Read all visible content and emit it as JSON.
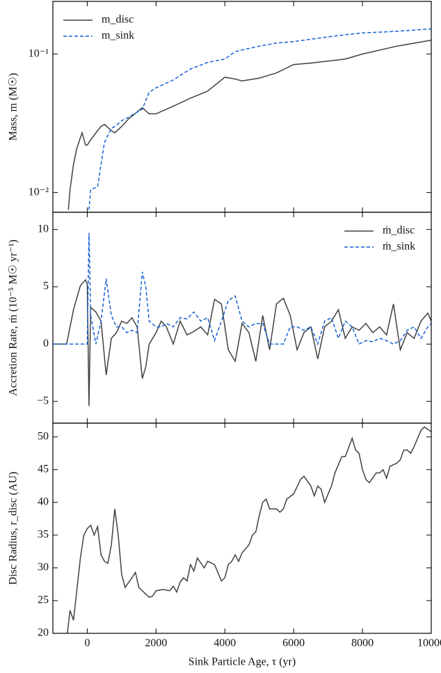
{
  "chart_data": [
    {
      "type": "line",
      "ylabel": "Mass, m (M☉)",
      "xlim": [
        -1000,
        10000
      ],
      "ylim": [
        0.0072,
        0.24
      ],
      "log_y": true,
      "yticks": [
        {
          "value": 0.01,
          "label": "10⁻²"
        },
        {
          "value": 0.1,
          "label": "10⁻¹"
        }
      ],
      "legend": "upper left",
      "x": [
        -550,
        -500,
        -400,
        -300,
        -150,
        -50,
        0,
        50,
        100,
        300,
        400,
        500,
        700,
        800,
        1000,
        1200,
        1600,
        1800,
        2000,
        2500,
        3000,
        3500,
        4000,
        4300,
        4500,
        5000,
        5500,
        6000,
        6500,
        7000,
        7500,
        8000,
        9000,
        10000
      ],
      "series": [
        {
          "name": "m_disc",
          "color": "#404040",
          "linestyle": "solid",
          "values": [
            0.0075,
            0.0105,
            0.016,
            0.021,
            0.027,
            0.022,
            0.022,
            0.023,
            0.024,
            0.028,
            0.03,
            0.031,
            0.028,
            0.027,
            0.03,
            0.034,
            0.041,
            0.037,
            0.037,
            0.042,
            0.048,
            0.054,
            0.068,
            0.066,
            0.064,
            0.067,
            0.073,
            0.084,
            0.086,
            0.089,
            0.092,
            0.1,
            0.114,
            0.126
          ]
        },
        {
          "name": "m_sink",
          "color": "#1560d4",
          "linestyle": "dashed",
          "values": [
            null,
            null,
            null,
            null,
            null,
            null,
            null,
            0.0075,
            0.0105,
            0.011,
            0.016,
            0.023,
            0.029,
            0.03,
            0.033,
            0.035,
            0.04,
            0.053,
            0.057,
            0.065,
            0.078,
            0.087,
            0.092,
            0.104,
            0.107,
            0.114,
            0.12,
            0.123,
            0.128,
            0.133,
            0.138,
            0.142,
            0.146,
            0.152
          ]
        }
      ]
    },
    {
      "type": "line",
      "ylabel": "Accretion Rate, ṁ (10⁻⁵ M☉ yr⁻¹)",
      "xlim": [
        -1000,
        10000
      ],
      "ylim": [
        -6.9,
        11.5
      ],
      "yticks": [
        {
          "value": -5,
          "label": "−5"
        },
        0,
        5,
        10
      ],
      "legend": "upper right",
      "x": [
        -1000,
        -600,
        -400,
        -200,
        -50,
        0,
        50,
        100,
        250,
        400,
        550,
        700,
        850,
        1000,
        1150,
        1300,
        1450,
        1600,
        1700,
        1800,
        2000,
        2150,
        2300,
        2500,
        2700,
        2900,
        3100,
        3300,
        3500,
        3700,
        3900,
        4100,
        4300,
        4500,
        4700,
        4900,
        5100,
        5300,
        5500,
        5700,
        5900,
        6100,
        6300,
        6500,
        6700,
        6900,
        7100,
        7300,
        7500,
        7700,
        7900,
        8100,
        8300,
        8500,
        8700,
        8900,
        9100,
        9300,
        9500,
        9700,
        9900,
        10000
      ],
      "series": [
        {
          "name": "ṁ_disc",
          "color": "#404040",
          "linestyle": "solid",
          "values": [
            0,
            0,
            3.0,
            5.1,
            5.6,
            5.2,
            -5.4,
            3.2,
            2.8,
            2.0,
            -2.7,
            0.5,
            1.0,
            2.0,
            1.8,
            2.3,
            1.5,
            -3.0,
            -2.0,
            0,
            1.0,
            2.0,
            1.5,
            0,
            2.0,
            0.8,
            1.1,
            1.5,
            0.8,
            3.9,
            3.5,
            -0.5,
            -1.5,
            1.8,
            1.0,
            -1.5,
            2.5,
            -0.5,
            3.5,
            4.0,
            2.5,
            -0.5,
            1.0,
            1.5,
            -1.3,
            1.5,
            2.0,
            3.0,
            0.5,
            1.5,
            1.2,
            1.8,
            1.0,
            1.5,
            0.8,
            3.5,
            -0.5,
            1.0,
            0.5,
            2.0,
            2.7,
            2.0
          ]
        },
        {
          "name": "ṁ_sink",
          "color": "#1560d4",
          "linestyle": "dashed",
          "values": [
            0,
            0,
            0,
            0,
            0,
            0,
            9.7,
            2.5,
            0,
            2.0,
            5.7,
            2.5,
            1.5,
            1.5,
            1.0,
            1.2,
            1.0,
            6.3,
            5.0,
            2.0,
            1.5,
            1.5,
            1.8,
            1.5,
            2.3,
            2.2,
            2.8,
            2.0,
            2.3,
            0.3,
            2.0,
            3.8,
            4.2,
            2.0,
            1.5,
            1.8,
            1.8,
            0,
            0,
            0,
            1.5,
            1.5,
            1.2,
            1.5,
            0,
            2.0,
            2.3,
            0.5,
            2.0,
            1.5,
            0,
            0.3,
            0.2,
            0.5,
            0.3,
            0,
            0.3,
            1.2,
            1.5,
            0.5,
            1.5,
            1.8
          ]
        }
      ]
    },
    {
      "type": "line",
      "ylabel": "Disc Radius, r_disc (AU)",
      "xlabel": "Sink Particle Age, τ (yr)",
      "xlim": [
        -1000,
        10000
      ],
      "ylim": [
        20,
        52.1
      ],
      "xticks": [
        0,
        2000,
        4000,
        6000,
        8000,
        10000
      ],
      "yticks": [
        20,
        25,
        30,
        35,
        40,
        45,
        50
      ],
      "x": [
        -580,
        -500,
        -400,
        -200,
        -100,
        0,
        100,
        200,
        300,
        400,
        500,
        600,
        700,
        800,
        900,
        1000,
        1100,
        1300,
        1400,
        1500,
        1700,
        1800,
        1900,
        2000,
        2200,
        2400,
        2500,
        2600,
        2700,
        2800,
        2900,
        3000,
        3100,
        3200,
        3400,
        3500,
        3700,
        3900,
        4000,
        4100,
        4200,
        4300,
        4400,
        4500,
        4700,
        4800,
        4900,
        5000,
        5100,
        5200,
        5300,
        5500,
        5600,
        5700,
        5800,
        6000,
        6200,
        6300,
        6500,
        6600,
        6700,
        6800,
        6900,
        7100,
        7200,
        7400,
        7500,
        7700,
        7800,
        7900,
        8000,
        8100,
        8200,
        8400,
        8500,
        8600,
        8700,
        8800,
        9000,
        9100,
        9200,
        9300,
        9400,
        9500,
        9700,
        9800,
        10000
      ],
      "series": [
        {
          "color": "#404040",
          "linestyle": "solid",
          "values": [
            20,
            23.5,
            22,
            31.5,
            35,
            36,
            36.5,
            35,
            36.3,
            32,
            31,
            30.7,
            33.5,
            39,
            35,
            29,
            27,
            28.5,
            29.3,
            27,
            26,
            25.5,
            25.7,
            26.5,
            26.7,
            26.5,
            27.2,
            26.3,
            27.8,
            28.5,
            28,
            30.5,
            29.5,
            31.5,
            30,
            31,
            30.5,
            28,
            28.5,
            30.5,
            31,
            32,
            31,
            32.3,
            33.5,
            35,
            35.5,
            38,
            40,
            40.5,
            39,
            39,
            38.5,
            39,
            40.5,
            41.3,
            43.5,
            44,
            42.5,
            41,
            42.5,
            42,
            40,
            42.5,
            44.5,
            47,
            47,
            49.8,
            48,
            47.5,
            45,
            43.5,
            43,
            44.5,
            44.5,
            45,
            43.7,
            45.5,
            46,
            46.5,
            48,
            48,
            47.5,
            48.5,
            51,
            51.5,
            50.8
          ]
        }
      ]
    }
  ]
}
